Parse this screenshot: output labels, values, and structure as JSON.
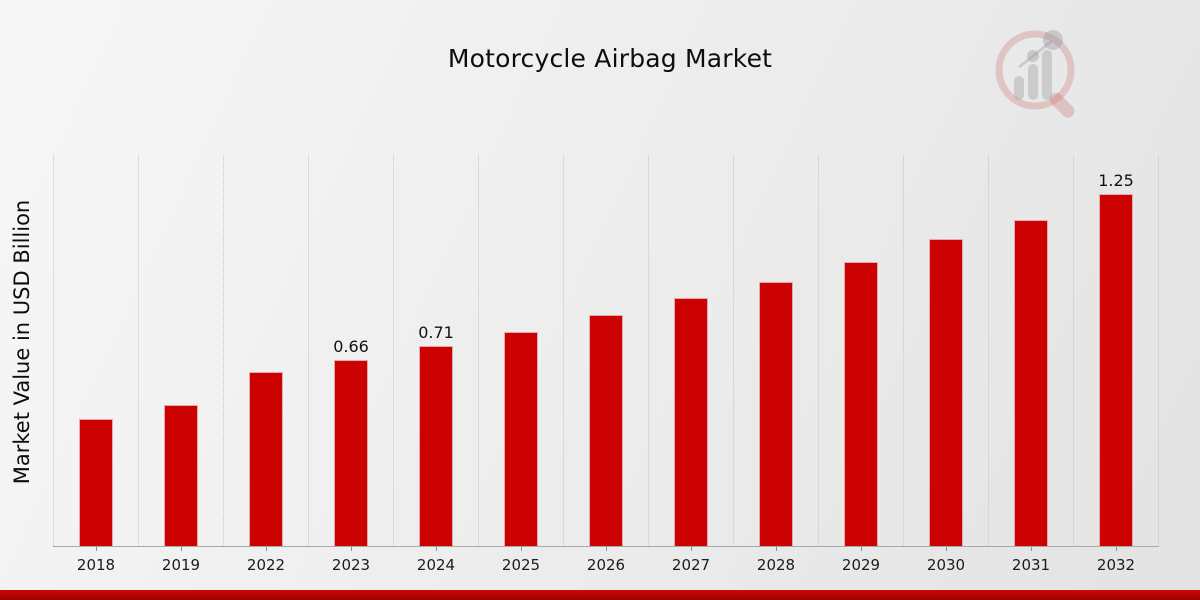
{
  "page": {
    "title": "Motorcycle Airbag Market",
    "watermark_icon": "market-research-magnifier-bar-chart-logo"
  },
  "chart_data": {
    "type": "bar",
    "title": "Motorcycle Airbag Market",
    "xlabel": "",
    "ylabel": "Market Value in USD Billion",
    "categories": [
      "2018",
      "2019",
      "2022",
      "2023",
      "2024",
      "2025",
      "2026",
      "2027",
      "2028",
      "2029",
      "2030",
      "2031",
      "2032"
    ],
    "values": [
      0.45,
      0.5,
      0.62,
      0.66,
      0.71,
      0.76,
      0.82,
      0.88,
      0.94,
      1.01,
      1.09,
      1.16,
      1.25
    ],
    "data_labels": [
      "",
      "",
      "",
      "0.66",
      "0.71",
      "",
      "",
      "",
      "",
      "",
      "",
      "",
      "1.25"
    ],
    "ylim": [
      0,
      1.39
    ],
    "grid": "vertical-dotted",
    "legend_position": "none",
    "bar_color": "#cc0101"
  },
  "colors": {
    "bar": "#cc0101",
    "gridline": "#c6c6c6",
    "axis_line": "#a9a9a9",
    "footer_top": "#c90808",
    "footer_bottom": "#9c0303",
    "background_light": "#f7f7f7",
    "background_dark": "#e3e3e3",
    "text": "#0d0d0d"
  }
}
